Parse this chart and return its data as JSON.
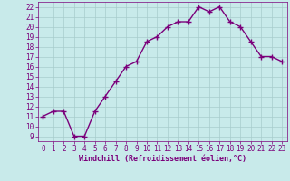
{
  "x": [
    0,
    1,
    2,
    3,
    4,
    5,
    6,
    7,
    8,
    9,
    10,
    11,
    12,
    13,
    14,
    15,
    16,
    17,
    18,
    19,
    20,
    21,
    22,
    23
  ],
  "y": [
    11,
    11.5,
    11.5,
    9,
    9,
    11.5,
    13,
    14.5,
    16,
    16.5,
    18.5,
    19,
    20,
    20.5,
    20.5,
    22,
    21.5,
    22,
    20.5,
    20,
    18.5,
    17,
    17,
    16.5
  ],
  "line_color": "#7b007b",
  "marker": "+",
  "marker_size": 4,
  "bg_color": "#c8eaea",
  "grid_color": "#a8cccc",
  "xlabel": "Windchill (Refroidissement éolien,°C)",
  "xlabel_color": "#7b007b",
  "tick_color": "#7b007b",
  "ylim": [
    8.5,
    22.5
  ],
  "xlim": [
    -0.5,
    23.5
  ],
  "yticks": [
    9,
    10,
    11,
    12,
    13,
    14,
    15,
    16,
    17,
    18,
    19,
    20,
    21,
    22
  ],
  "xticks": [
    0,
    1,
    2,
    3,
    4,
    5,
    6,
    7,
    8,
    9,
    10,
    11,
    12,
    13,
    14,
    15,
    16,
    17,
    18,
    19,
    20,
    21,
    22,
    23
  ],
  "tick_fontsize": 5.5,
  "xlabel_fontsize": 6.0,
  "linewidth": 1.0,
  "marker_linewidth": 1.0
}
